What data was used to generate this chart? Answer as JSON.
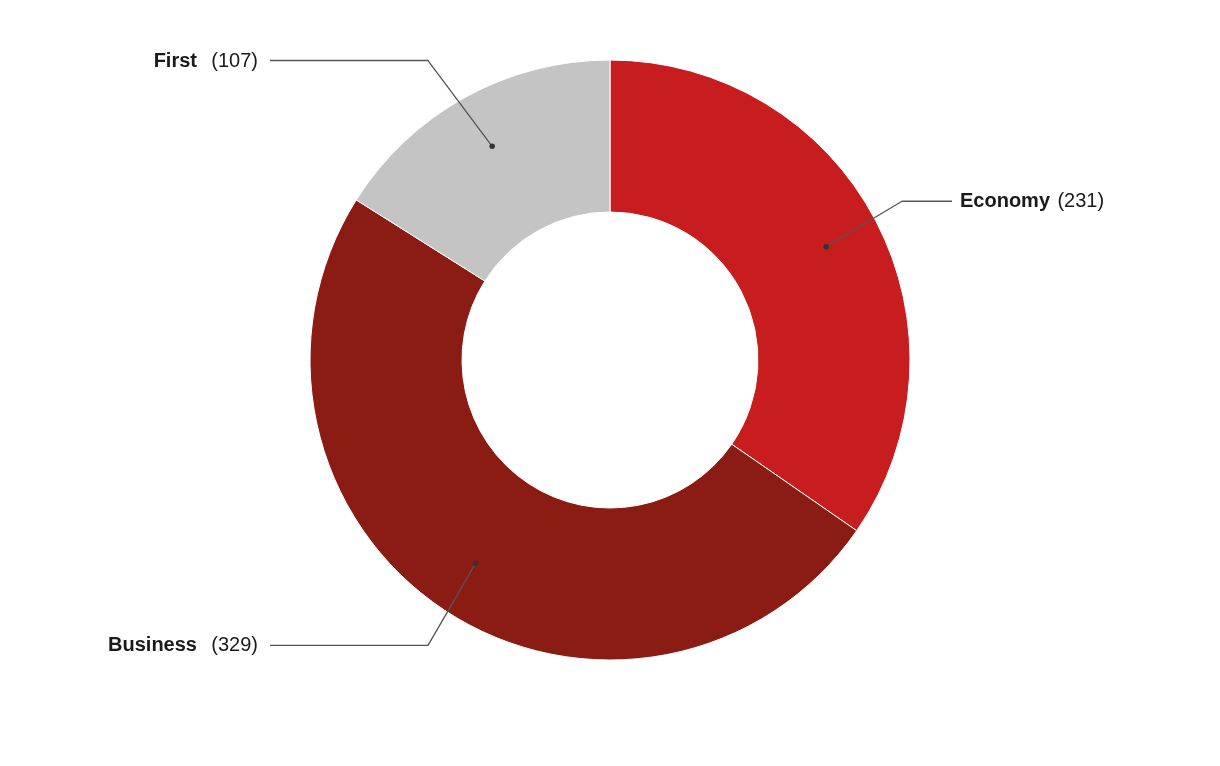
{
  "chart_data": {
    "type": "donut",
    "categories": [
      "Economy",
      "Business",
      "First"
    ],
    "values": [
      231,
      329,
      107
    ],
    "colors": [
      "#c81d1e",
      "#8b1c14",
      "#c4c4c4"
    ],
    "value_labels": [
      "(231)",
      "(329)",
      "(107)"
    ]
  }
}
